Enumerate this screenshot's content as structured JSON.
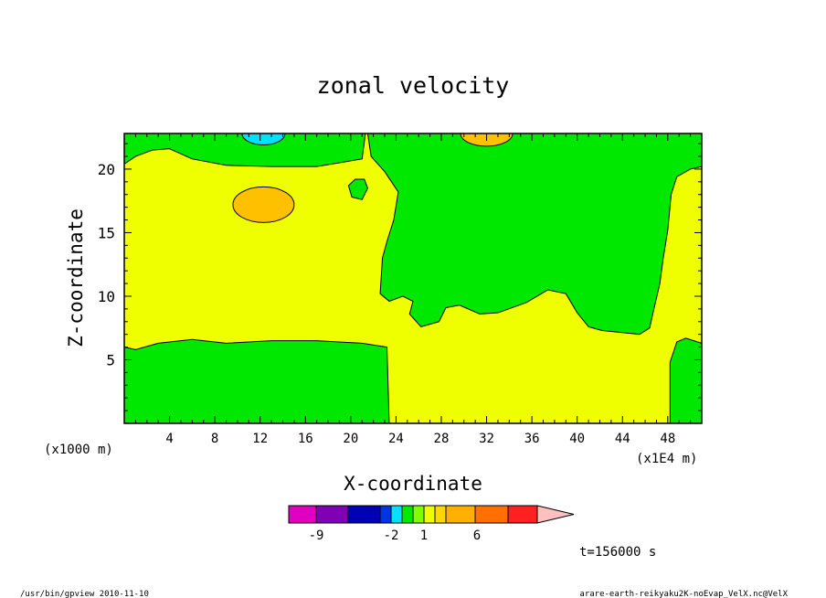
{
  "chart_data": {
    "type": "heatmap",
    "subtype": "filled-contour",
    "title": "zonal velocity",
    "xlabel": "X-coordinate",
    "ylabel": "Z-coordinate",
    "x_unit": "(x1E4 m)",
    "y_unit": "(x1000 m)",
    "xlim": [
      0,
      51
    ],
    "ylim": [
      0,
      22.8
    ],
    "x_ticks": [
      4,
      8,
      12,
      16,
      20,
      24,
      28,
      32,
      36,
      40,
      44,
      48
    ],
    "y_ticks": [
      5,
      10,
      15,
      20
    ],
    "grid": false,
    "field_regions": [
      {
        "level": "yellow",
        "color": "#f0ff00",
        "description": "background (0 to 1)"
      },
      {
        "level": "green",
        "color": "#00e800",
        "region": "upper-left band",
        "points": [
          [
            0,
            20.4
          ],
          [
            1,
            21
          ],
          [
            2.5,
            21.5
          ],
          [
            4,
            21.6
          ],
          [
            6,
            20.8
          ],
          [
            9,
            20.3
          ],
          [
            13,
            20.2
          ],
          [
            17,
            20.2
          ],
          [
            21,
            20.8
          ],
          [
            21.3,
            22.8
          ],
          [
            0,
            22.8
          ]
        ]
      },
      {
        "level": "green",
        "color": "#00e800",
        "region": "lower-left",
        "points": [
          [
            0,
            6
          ],
          [
            1,
            5.8
          ],
          [
            3,
            6.3
          ],
          [
            6,
            6.6
          ],
          [
            9,
            6.3
          ],
          [
            13,
            6.5
          ],
          [
            17,
            6.5
          ],
          [
            21,
            6.3
          ],
          [
            23.2,
            6
          ],
          [
            23.4,
            0
          ],
          [
            0,
            0
          ]
        ]
      },
      {
        "level": "green",
        "color": "#00e800",
        "region": "right upper mass",
        "points": [
          [
            21.5,
            22.8
          ],
          [
            21.8,
            21
          ],
          [
            23,
            19.8
          ],
          [
            24.2,
            18.2
          ],
          [
            23.8,
            16
          ],
          [
            23.2,
            14.3
          ],
          [
            22.8,
            13
          ],
          [
            22.6,
            10.2
          ],
          [
            23.4,
            9.6
          ],
          [
            24.6,
            10
          ],
          [
            25.5,
            9.6
          ],
          [
            25.2,
            8.6
          ],
          [
            26.2,
            7.6
          ],
          [
            27.8,
            8
          ],
          [
            28.4,
            9.1
          ],
          [
            29.6,
            9.3
          ],
          [
            31.4,
            8.6
          ],
          [
            33,
            8.7
          ],
          [
            35.5,
            9.5
          ],
          [
            37.4,
            10.5
          ],
          [
            39,
            10.2
          ],
          [
            40,
            8.7
          ],
          [
            41,
            7.6
          ],
          [
            42.2,
            7.3
          ],
          [
            45.5,
            7
          ],
          [
            46.4,
            7.5
          ],
          [
            46.7,
            8.7
          ],
          [
            47.3,
            11
          ],
          [
            47.6,
            13
          ],
          [
            48,
            15.2
          ],
          [
            48.3,
            18
          ],
          [
            48.8,
            19.4
          ],
          [
            50,
            20
          ],
          [
            51,
            20.2
          ],
          [
            51,
            22.8
          ]
        ]
      },
      {
        "level": "green",
        "color": "#00e800",
        "region": "lower-right",
        "points": [
          [
            48.2,
            0
          ],
          [
            48.2,
            4.8
          ],
          [
            48.8,
            6.4
          ],
          [
            49.6,
            6.7
          ],
          [
            51,
            6.3
          ],
          [
            51,
            0
          ]
        ]
      },
      {
        "level": "green",
        "color": "#00e800",
        "region": "small island",
        "points": [
          [
            19.8,
            18.7
          ],
          [
            20.4,
            19.2
          ],
          [
            21.2,
            19.2
          ],
          [
            21.5,
            18.5
          ],
          [
            21,
            17.6
          ],
          [
            20.1,
            17.8
          ]
        ]
      },
      {
        "level": "orange",
        "color": "#ffc000",
        "region": "blob near x=12",
        "ellipse": {
          "cx": 12.3,
          "cy": 17.2,
          "rx": 2.7,
          "ry": 1.4
        }
      },
      {
        "level": "orange",
        "color": "#ffc000",
        "region": "top near x=32",
        "ellipse": {
          "cx": 32,
          "cy": 22.8,
          "rx": 2.3,
          "ry": 1.0
        }
      },
      {
        "level": "cyan",
        "color": "#00e0ff",
        "region": "top near x=12",
        "ellipse": {
          "cx": 12.3,
          "cy": 22.8,
          "rx": 1.9,
          "ry": 0.9
        }
      }
    ],
    "colorbar": {
      "tick_labels": [
        "-9",
        "-2",
        "1",
        "6"
      ],
      "colors": [
        "#e000c0",
        "#8000b4",
        "#0000b4",
        "#0034e0",
        "#00e0ff",
        "#00e800",
        "#80ff00",
        "#f0ff00",
        "#ffd800",
        "#ffb000",
        "#ff7000",
        "#ff2020",
        "#ff8080",
        "#ffc0c0"
      ]
    },
    "annotation": "t=156000 s"
  },
  "footer": {
    "left": "/usr/bin/gpview  2010-11-10",
    "right": "arare-earth-reikyaku2K-noEvap_VelX.nc@VelX"
  }
}
